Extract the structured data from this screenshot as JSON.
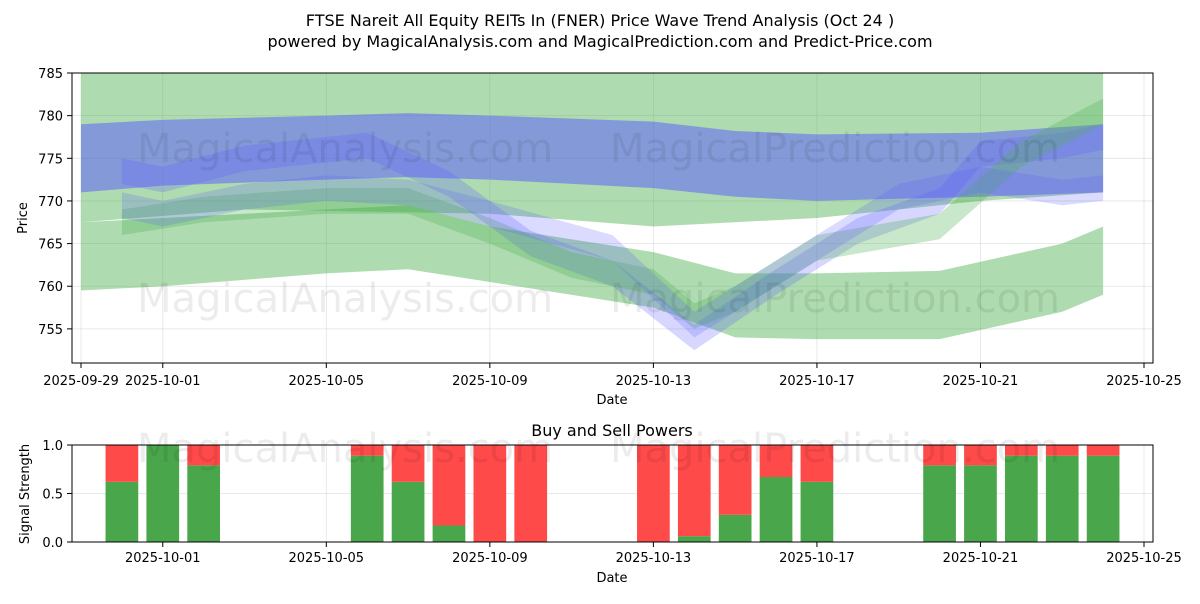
{
  "titles": {
    "line1": "FTSE Nareit All Equity REITs In (FNER) Price Wave Trend Analysis (Oct 24 )",
    "line2": "powered by MagicalAnalysis.com and MagicalPrediction.com and Predict-Price.com"
  },
  "watermarks": {
    "left": "MagicalAnalysis.com",
    "right": "MagicalPrediction.com"
  },
  "colors": {
    "green_band": "#4caf50",
    "blue_band": "#5a5aff",
    "buy": "#4aa64a",
    "sell": "#ff4a4a"
  },
  "chart_data": [
    {
      "type": "area",
      "title": "",
      "xlabel": "Date",
      "ylabel": "Price",
      "xlim": [
        "2025-09-29",
        "2025-10-25"
      ],
      "ylim": [
        751,
        785
      ],
      "x_ticks": [
        "2025-09-29",
        "2025-10-01",
        "2025-10-05",
        "2025-10-09",
        "2025-10-13",
        "2025-10-17",
        "2025-10-21",
        "2025-10-25"
      ],
      "y_ticks": [
        755,
        760,
        765,
        770,
        775,
        780,
        785
      ],
      "grid": true,
      "series": [
        {
          "name": "green-upper-wide",
          "color": "green",
          "opacity": 0.45,
          "x": [
            "2025-09-29",
            "2025-10-03",
            "2025-10-09",
            "2025-10-13",
            "2025-10-17",
            "2025-10-21",
            "2025-10-24"
          ],
          "lower": [
            767.5,
            769,
            768.5,
            767,
            768,
            770,
            771
          ],
          "upper": [
            786,
            786,
            786,
            786,
            786,
            786,
            786
          ]
        },
        {
          "name": "green-lower-wide",
          "color": "green",
          "opacity": 0.45,
          "x": [
            "2025-09-29",
            "2025-10-01",
            "2025-10-05",
            "2025-10-07",
            "2025-10-09",
            "2025-10-13",
            "2025-10-15",
            "2025-10-17",
            "2025-10-20",
            "2025-10-23",
            "2025-10-24"
          ],
          "lower": [
            759.5,
            760,
            761.5,
            762,
            760.5,
            757.5,
            754,
            753.8,
            753.8,
            757,
            759
          ],
          "upper": [
            767.5,
            768,
            769,
            769.5,
            767,
            764,
            761.5,
            761.5,
            761.8,
            765,
            767
          ]
        },
        {
          "name": "blue-main",
          "color": "blue",
          "opacity": 0.5,
          "x": [
            "2025-09-29",
            "2025-10-01",
            "2025-10-05",
            "2025-10-07",
            "2025-10-09",
            "2025-10-13",
            "2025-10-15",
            "2025-10-17",
            "2025-10-21",
            "2025-10-24"
          ],
          "lower": [
            771,
            771.8,
            772.5,
            772.8,
            772.5,
            771.5,
            770.5,
            770,
            770.5,
            771
          ],
          "upper": [
            779,
            779.5,
            780,
            780.3,
            780,
            779.3,
            778.2,
            777.8,
            778,
            779
          ]
        },
        {
          "name": "wave-path-1",
          "color": "blue",
          "opacity": 0.25,
          "x": [
            "2025-09-30",
            "2025-10-01",
            "2025-10-03",
            "2025-10-06",
            "2025-10-08",
            "2025-10-10",
            "2025-10-12",
            "2025-10-14",
            "2025-10-16",
            "2025-10-18",
            "2025-10-20",
            "2025-10-21",
            "2025-10-23",
            "2025-10-24"
          ],
          "lower": [
            772,
            771,
            773.5,
            775,
            770.5,
            763.5,
            760,
            752.5,
            759,
            765,
            768.5,
            774,
            775,
            776
          ],
          "upper": [
            775,
            774,
            776.5,
            778,
            773.5,
            766.5,
            763,
            755.5,
            762,
            768,
            771.5,
            777,
            778,
            779
          ]
        },
        {
          "name": "wave-path-2",
          "color": "green",
          "opacity": 0.3,
          "x": [
            "2025-09-30",
            "2025-10-02",
            "2025-10-05",
            "2025-10-07",
            "2025-10-09",
            "2025-10-11",
            "2025-10-13",
            "2025-10-14",
            "2025-10-15",
            "2025-10-17",
            "2025-10-20",
            "2025-10-22",
            "2025-10-24"
          ],
          "lower": [
            766,
            767.5,
            768.5,
            768.5,
            765,
            761,
            759,
            755,
            757,
            763,
            765.5,
            774,
            779
          ],
          "upper": [
            769,
            770.5,
            771.5,
            771.5,
            768,
            764,
            762,
            758,
            760,
            766,
            768.5,
            777,
            782
          ]
        },
        {
          "name": "wave-path-3",
          "color": "blue",
          "opacity": 0.22,
          "x": [
            "2025-09-30",
            "2025-10-01",
            "2025-10-03",
            "2025-10-05",
            "2025-10-07",
            "2025-10-09",
            "2025-10-12",
            "2025-10-14",
            "2025-10-16",
            "2025-10-19",
            "2025-10-21",
            "2025-10-23",
            "2025-10-24"
          ],
          "lower": [
            768,
            767,
            769,
            770,
            769.5,
            767,
            763,
            754,
            760,
            769,
            771,
            769.5,
            770
          ],
          "upper": [
            771,
            770,
            772,
            773,
            772.5,
            770,
            766,
            757,
            763,
            772,
            774,
            772.5,
            773
          ]
        }
      ]
    },
    {
      "type": "bar",
      "title": "Buy and Sell Powers",
      "xlabel": "Date",
      "ylabel": "Signal Strength",
      "xlim": [
        "2025-09-29",
        "2025-10-25"
      ],
      "ylim": [
        0,
        1
      ],
      "x_ticks": [
        "2025-10-01",
        "2025-10-05",
        "2025-10-09",
        "2025-10-13",
        "2025-10-17",
        "2025-10-21",
        "2025-10-25"
      ],
      "y_ticks": [
        "0.0",
        "0.5",
        "1.0"
      ],
      "grid": true,
      "categories": [
        "2025-09-30",
        "2025-10-01",
        "2025-10-02",
        "2025-10-06",
        "2025-10-07",
        "2025-10-08",
        "2025-10-09",
        "2025-10-10",
        "2025-10-13",
        "2025-10-14",
        "2025-10-15",
        "2025-10-16",
        "2025-10-17",
        "2025-10-20",
        "2025-10-21",
        "2025-10-22",
        "2025-10-23",
        "2025-10-24"
      ],
      "series": [
        {
          "name": "Buy",
          "values": [
            0.62,
            1.0,
            0.79,
            0.89,
            0.62,
            0.17,
            0.0,
            0.0,
            0.0,
            0.06,
            0.28,
            0.67,
            0.62,
            0.79,
            0.79,
            0.89,
            0.89,
            0.89
          ]
        },
        {
          "name": "Sell",
          "values": [
            0.38,
            0.0,
            0.21,
            0.11,
            0.38,
            0.83,
            1.0,
            1.0,
            1.0,
            0.94,
            0.72,
            0.33,
            0.38,
            0.21,
            0.21,
            0.11,
            0.11,
            0.11
          ]
        }
      ]
    }
  ]
}
